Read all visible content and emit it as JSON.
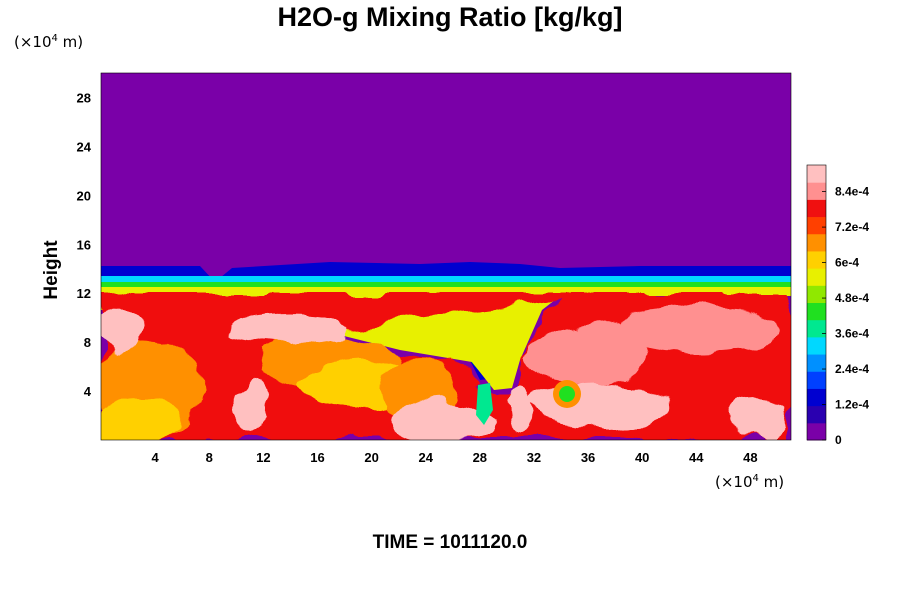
{
  "chart_data": {
    "type": "heatmap",
    "title": "H2O-g Mixing Ratio [kg/kg]",
    "xlabel": "",
    "ylabel": "Height",
    "x_unit_text": "(×10",
    "x_unit_exp": "4",
    "x_unit_tail": " m)",
    "y_unit_text": "(×10",
    "y_unit_exp": "4",
    "y_unit_tail": " m)",
    "xlim": [
      0,
      51
    ],
    "ylim": [
      0,
      30
    ],
    "x_ticks": [
      4,
      8,
      12,
      16,
      20,
      24,
      28,
      32,
      36,
      40,
      44,
      48
    ],
    "x_tick_labels": [
      "4",
      "8",
      "12",
      "16",
      "20",
      "24",
      "28",
      "32",
      "36",
      "40",
      "44",
      "48"
    ],
    "y_ticks": [
      4,
      8,
      12,
      16,
      20,
      24,
      28
    ],
    "y_tick_labels": [
      "4",
      "8",
      "12",
      "16",
      "20",
      "24",
      "28"
    ],
    "colorbar": {
      "min": 0,
      "max": 0.00093,
      "ticks": [
        0,
        0.00012,
        0.00024,
        0.00036,
        0.00048,
        0.0006,
        0.00072,
        0.00084
      ],
      "tick_labels": [
        "0",
        "1.2e-4",
        "2.4e-4",
        "3.6e-4",
        "4.8e-4",
        "6e-4",
        "7.2e-4",
        "8.4e-4"
      ],
      "colors": [
        "#7a00a8",
        "#2a00b0",
        "#0000d0",
        "#0040ff",
        "#0090ff",
        "#00d8ff",
        "#00e890",
        "#20e020",
        "#90e800",
        "#e8f000",
        "#ffd000",
        "#ff9000",
        "#ff4000",
        "#f01010",
        "#ff9090",
        "#ffc0c0"
      ]
    },
    "field_description_values": {
      "dry_layer_top": 30,
      "moist_layer_top_approx": 13.5,
      "upper_value": 0,
      "lower_value_max": 0.00093
    },
    "footer_label": "TIME = 1011120.0"
  }
}
